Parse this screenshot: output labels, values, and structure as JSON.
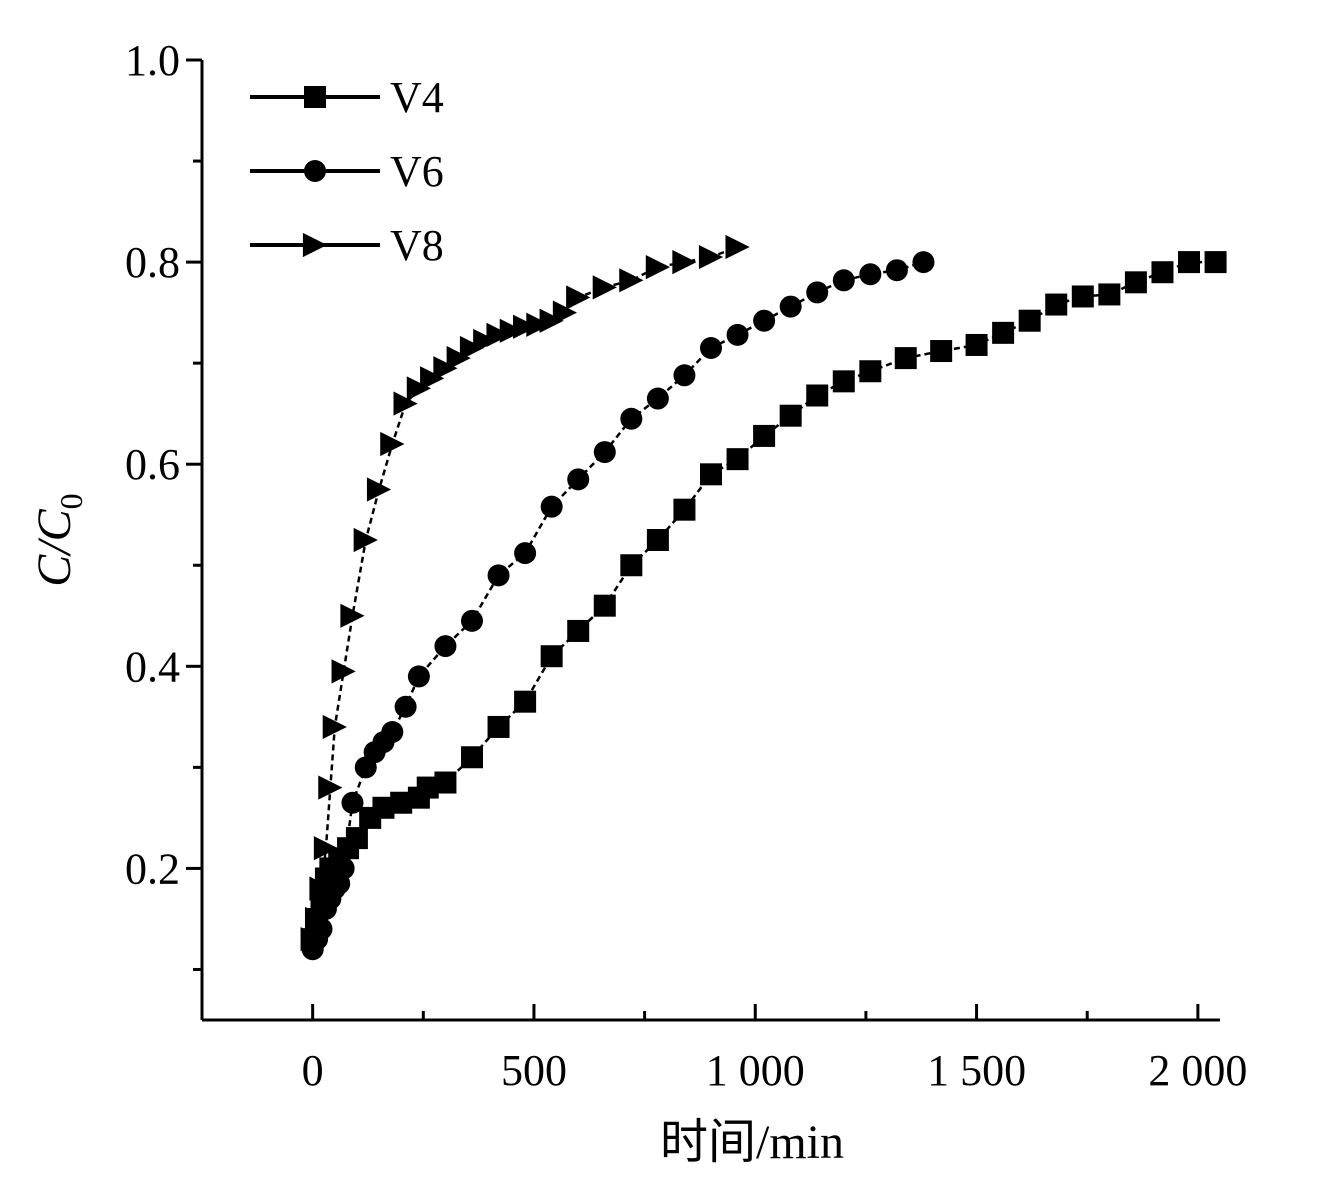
{
  "chart_data": {
    "type": "line",
    "xlabel": "时间/min",
    "ylabel_main": "C/C",
    "ylabel_sub": "0",
    "xlim": [
      -250,
      2050
    ],
    "ylim": [
      0.05,
      1.0
    ],
    "x_ticks": [
      0,
      500,
      1000,
      1500,
      2000
    ],
    "x_tick_labels": [
      "0",
      "500",
      "1 000",
      "1 500",
      "2 000"
    ],
    "y_ticks": [
      0.2,
      0.4,
      0.6,
      0.8,
      1.0
    ],
    "y_tick_labels": [
      "0.2",
      "0.4",
      "0.6",
      "0.8",
      "1.0"
    ],
    "legend_position": "top-left",
    "series": [
      {
        "name": "V4",
        "marker": "square",
        "x": [
          0,
          10,
          20,
          30,
          40,
          60,
          80,
          100,
          130,
          160,
          200,
          240,
          260,
          300,
          360,
          420,
          480,
          540,
          600,
          660,
          720,
          780,
          840,
          900,
          960,
          1020,
          1080,
          1140,
          1200,
          1260,
          1340,
          1420,
          1500,
          1560,
          1620,
          1680,
          1740,
          1800,
          1860,
          1920,
          1980,
          2040
        ],
        "y": [
          0.13,
          0.15,
          0.17,
          0.19,
          0.2,
          0.21,
          0.22,
          0.23,
          0.25,
          0.26,
          0.265,
          0.27,
          0.28,
          0.285,
          0.31,
          0.34,
          0.365,
          0.41,
          0.435,
          0.46,
          0.5,
          0.525,
          0.555,
          0.59,
          0.605,
          0.628,
          0.648,
          0.668,
          0.682,
          0.692,
          0.705,
          0.712,
          0.718,
          0.73,
          0.742,
          0.758,
          0.766,
          0.768,
          0.78,
          0.79,
          0.8,
          0.8
        ]
      },
      {
        "name": "V6",
        "marker": "circle",
        "x": [
          0,
          10,
          20,
          30,
          40,
          50,
          60,
          70,
          90,
          120,
          140,
          160,
          180,
          210,
          240,
          300,
          360,
          420,
          480,
          540,
          600,
          660,
          720,
          780,
          840,
          900,
          960,
          1020,
          1080,
          1140,
          1200,
          1260,
          1320,
          1380
        ],
        "y": [
          0.12,
          0.13,
          0.14,
          0.16,
          0.17,
          0.18,
          0.185,
          0.2,
          0.265,
          0.3,
          0.315,
          0.325,
          0.335,
          0.36,
          0.39,
          0.42,
          0.445,
          0.49,
          0.512,
          0.558,
          0.585,
          0.612,
          0.645,
          0.665,
          0.688,
          0.715,
          0.728,
          0.742,
          0.756,
          0.77,
          0.782,
          0.788,
          0.792,
          0.8
        ]
      },
      {
        "name": "V8",
        "marker": "triangle-right",
        "x": [
          0,
          10,
          20,
          30,
          40,
          50,
          70,
          90,
          120,
          150,
          180,
          210,
          240,
          270,
          300,
          330,
          360,
          390,
          420,
          450,
          480,
          510,
          540,
          570,
          600,
          660,
          720,
          780,
          840,
          900,
          960
        ],
        "y": [
          0.13,
          0.15,
          0.18,
          0.22,
          0.28,
          0.34,
          0.395,
          0.45,
          0.525,
          0.575,
          0.62,
          0.66,
          0.675,
          0.685,
          0.695,
          0.705,
          0.715,
          0.722,
          0.728,
          0.732,
          0.736,
          0.738,
          0.742,
          0.75,
          0.765,
          0.775,
          0.782,
          0.795,
          0.8,
          0.805,
          0.815
        ]
      }
    ]
  }
}
